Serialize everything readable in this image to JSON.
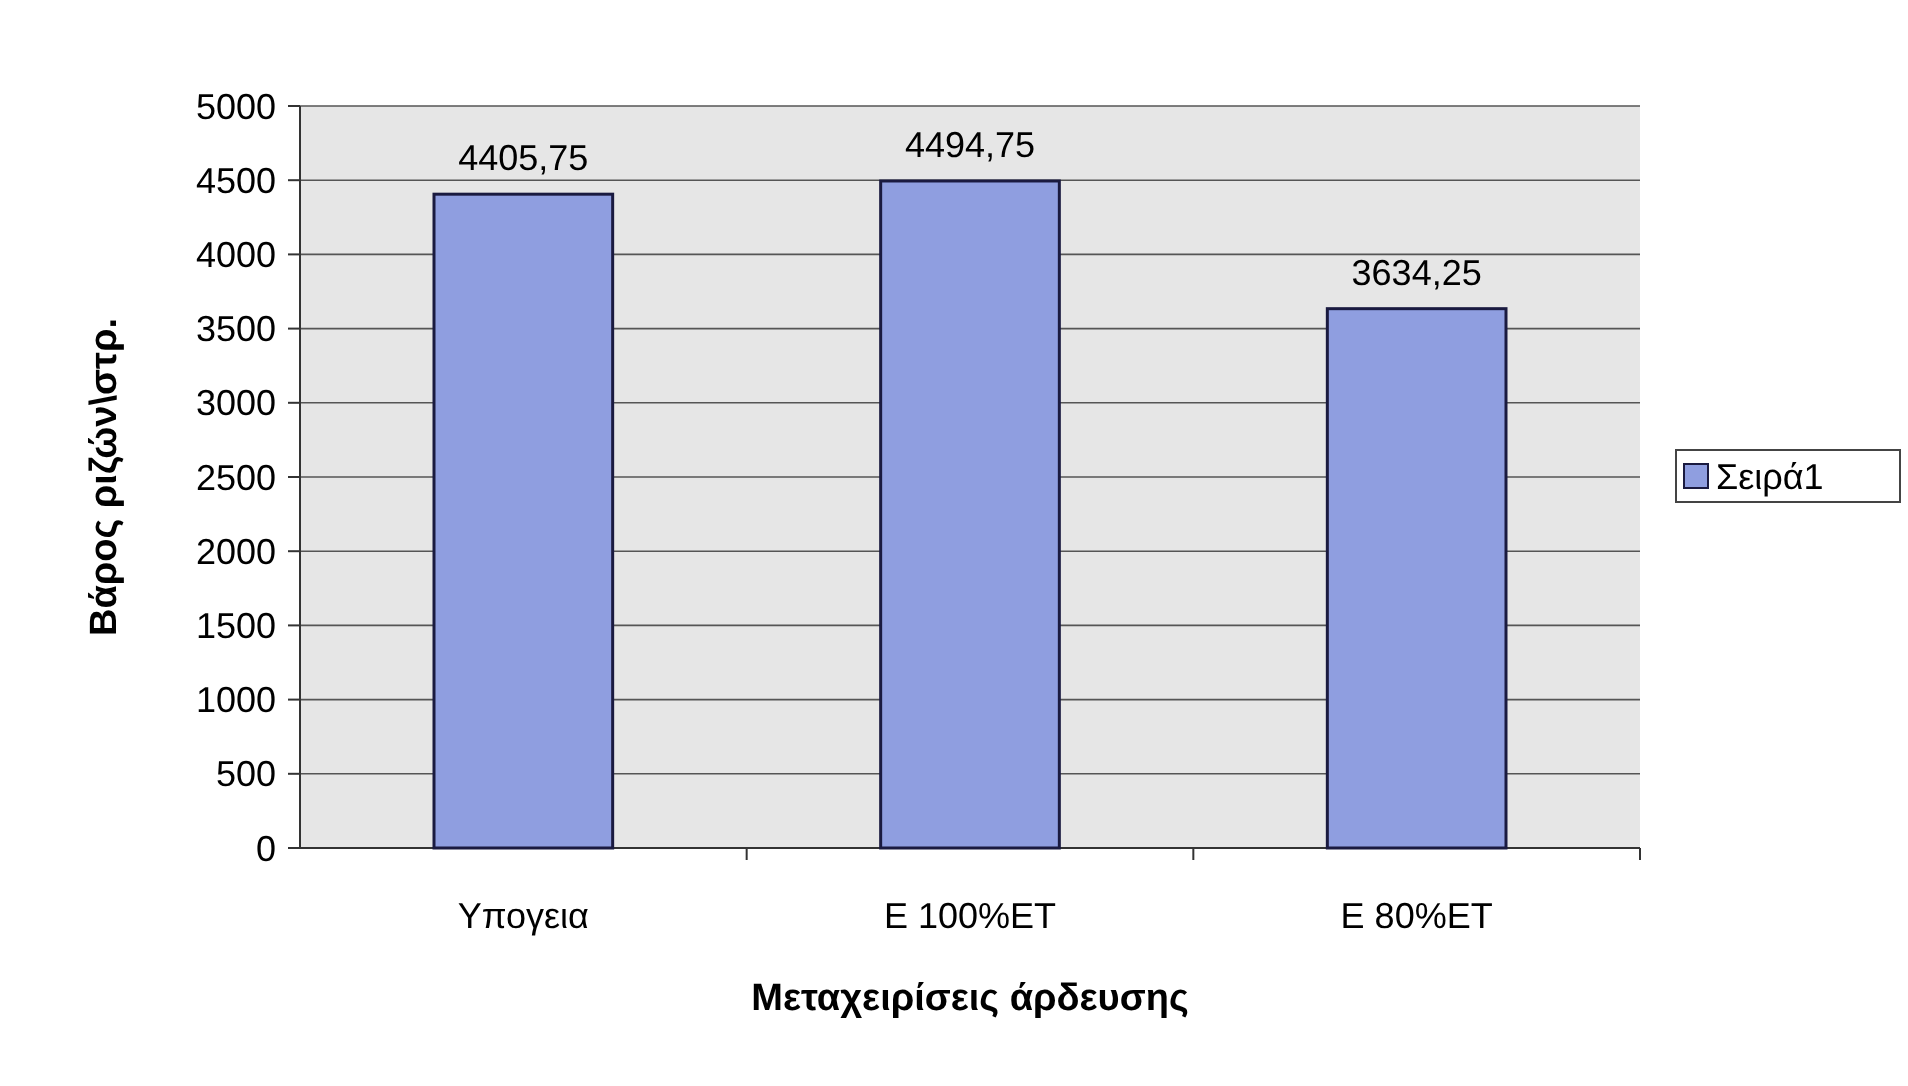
{
  "chart_data": {
    "type": "bar",
    "xlabel": "Μεταχειρίσεις άρδευσης",
    "ylabel": "Βάρος ριζών\\στρ.",
    "categories": [
      "Υπογεια",
      "E 100%ET",
      "E 80%ET"
    ],
    "series": [
      {
        "name": "Σειρά1",
        "color": "#8f9ee0",
        "values": [
          4405.75,
          4494.75,
          3634.25
        ],
        "value_labels": [
          "4405,75",
          "4494,75",
          "3634,25"
        ]
      }
    ],
    "ylim": [
      0,
      5000
    ],
    "yticks": [
      0,
      500,
      1000,
      1500,
      2000,
      2500,
      3000,
      3500,
      4000,
      4500,
      5000
    ],
    "grid": "y",
    "legend": "right"
  }
}
